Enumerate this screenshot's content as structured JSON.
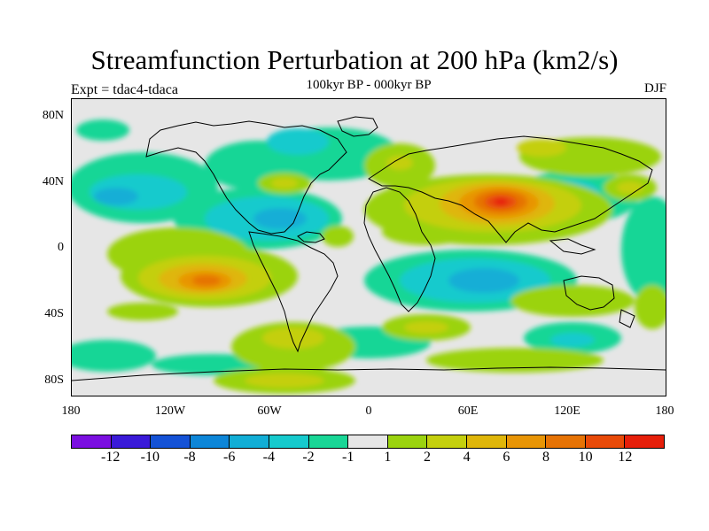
{
  "title": "Streamfunction Perturbation at 200 hPa (km2/s)",
  "subtitle": "100kyr BP - 000kyr BP",
  "left_label": "Expt = tdac4-tdaca",
  "right_label": "DJF",
  "lat_labels": [
    "80N",
    "40N",
    "0",
    "40S",
    "80S"
  ],
  "lon_labels": [
    "180",
    "120W",
    "60W",
    "0",
    "60E",
    "120E",
    "180"
  ],
  "colorbar": {
    "colors": [
      "#7b0fe0",
      "#3a1ad8",
      "#1452d6",
      "#0d86d8",
      "#12aed6",
      "#16cacd",
      "#19d696",
      "#e6e6e6",
      "#9bd30f",
      "#c4cf0e",
      "#dfb60a",
      "#e89506",
      "#e67305",
      "#e84a08",
      "#e61f0a"
    ],
    "labels": [
      "-12",
      "-10",
      "-8",
      "-6",
      "-4",
      "-2",
      "-1",
      "1",
      "2",
      "4",
      "6",
      "8",
      "10",
      "12"
    ]
  },
  "field_blobs": [
    {
      "region": "North Atlantic / N. America",
      "level": "-2"
    },
    {
      "region": "Eastern North Pacific",
      "level": "-2"
    },
    {
      "region": "Central America / Caribbean",
      "level": "-4"
    },
    {
      "region": "Tibet / South Asia",
      "level": "12"
    },
    {
      "region": "Southeast Pacific",
      "level": "8"
    },
    {
      "region": "South Indian Ocean",
      "level": "-4"
    },
    {
      "region": "Western Pacific",
      "level": "-2"
    },
    {
      "region": "Siberia",
      "level": "2"
    },
    {
      "region": "Southern Ocean",
      "level": "2"
    },
    {
      "region": "Antarctica",
      "level": "2"
    }
  ]
}
